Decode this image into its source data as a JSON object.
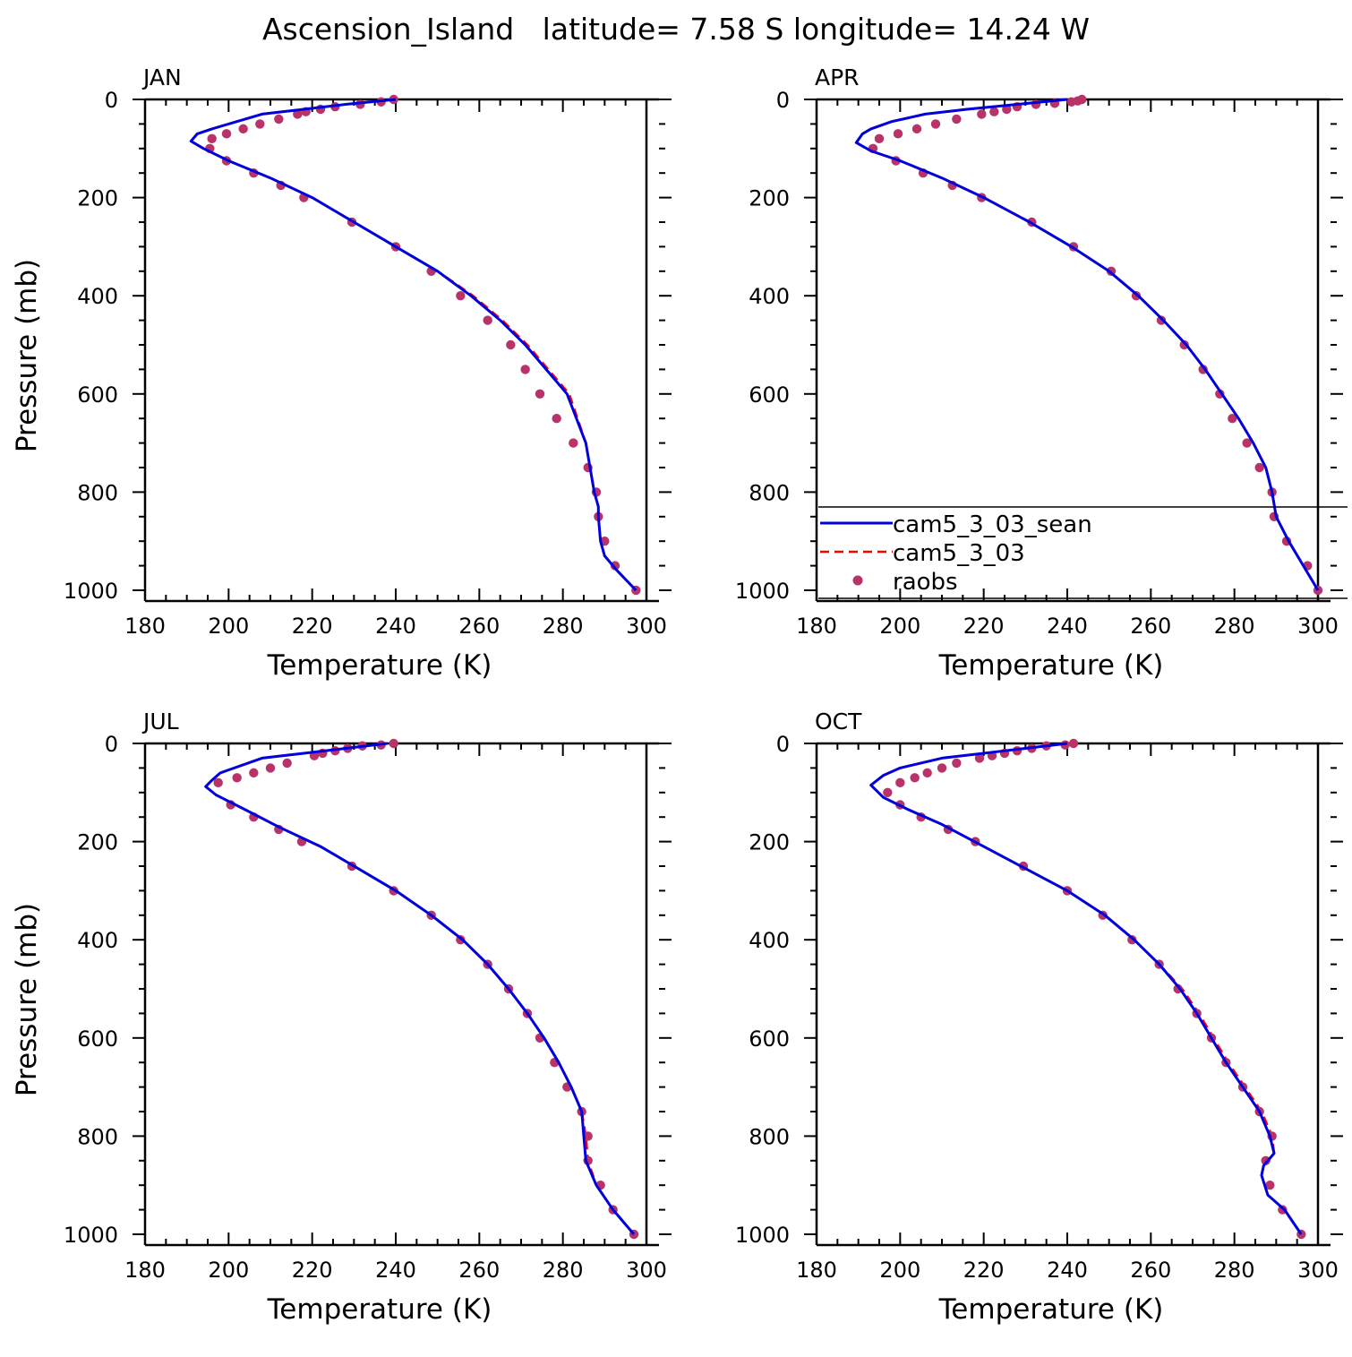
{
  "figure": {
    "title": "Ascension_Island   latitude= 7.58 S longitude= 14.24 W"
  },
  "legend": {
    "entries": [
      {
        "label": "cam5_3_03_sean",
        "style": "solid-line",
        "color": "#0000dd"
      },
      {
        "label": "cam5_3_03",
        "style": "dashed-line",
        "color": "#ff0000"
      },
      {
        "label": "raobs",
        "style": "marker",
        "color": "#b8336a"
      }
    ]
  },
  "colors": {
    "model_sean": "#0000dd",
    "model_base": "#ff0000",
    "raobs": "#b8336a"
  },
  "chart_data": [
    {
      "type": "line",
      "panel": "JAN",
      "xlabel": "Temperature (K)",
      "ylabel": "Pressure (mb)",
      "xlim": [
        180,
        300
      ],
      "ylim": [
        0,
        1000
      ],
      "y_inverted": true,
      "xticks": [
        180,
        200,
        220,
        240,
        260,
        280,
        300
      ],
      "yticks": [
        0,
        200,
        400,
        600,
        800,
        1000
      ],
      "series": [
        {
          "name": "cam5_3_03_sean",
          "x": [
            240,
            228,
            218,
            208,
            200,
            196,
            192.5,
            191,
            194,
            200,
            210,
            220,
            230,
            240,
            250,
            258,
            265,
            271,
            276,
            281,
            285.5,
            287.5,
            288.5,
            288.5,
            289,
            290,
            293,
            297.5
          ],
          "y": [
            0,
            10,
            20,
            30,
            50,
            60,
            70,
            85,
            100,
            125,
            160,
            200,
            250,
            300,
            350,
            400,
            450,
            500,
            550,
            600,
            700,
            800,
            830,
            850,
            900,
            930,
            960,
            1000
          ]
        },
        {
          "name": "cam5_3_03",
          "x": [
            240,
            228,
            218,
            208,
            200,
            196,
            192.5,
            191,
            194,
            200,
            210,
            220,
            230,
            240,
            250,
            258.5,
            265.5,
            271.5,
            276.5,
            281.5,
            285.5,
            287.5,
            288.5,
            288.5,
            289,
            290,
            293,
            297.5
          ],
          "y": [
            0,
            10,
            20,
            30,
            50,
            60,
            70,
            85,
            100,
            125,
            160,
            200,
            250,
            300,
            350,
            400,
            450,
            500,
            550,
            600,
            700,
            800,
            830,
            850,
            900,
            930,
            960,
            1000
          ]
        },
        {
          "name": "raobs",
          "x": [
            239.5,
            236.5,
            231.5,
            225.5,
            222,
            218.5,
            216.5,
            212,
            207.5,
            203.5,
            199.5,
            196,
            195.5,
            199.5,
            206,
            212.5,
            218,
            229.5,
            240,
            248.5,
            255.5,
            262,
            267.5,
            271,
            274.5,
            278.5,
            282.5,
            286,
            288,
            288.5,
            290,
            292.5,
            297.5
          ],
          "y": [
            0,
            5,
            10,
            15,
            20,
            25,
            30,
            40,
            50,
            60,
            70,
            80,
            100,
            125,
            150,
            175,
            200,
            250,
            300,
            350,
            400,
            450,
            500,
            550,
            600,
            650,
            700,
            750,
            800,
            850,
            900,
            950,
            1000
          ]
        }
      ]
    },
    {
      "type": "line",
      "panel": "APR",
      "xlabel": "Temperature (K)",
      "ylabel": "",
      "xlim": [
        180,
        300
      ],
      "ylim": [
        0,
        1000
      ],
      "y_inverted": true,
      "xticks": [
        180,
        200,
        220,
        240,
        260,
        280,
        300
      ],
      "yticks": [
        0,
        200,
        400,
        600,
        800,
        1000
      ],
      "series": [
        {
          "name": "cam5_3_03_sean",
          "x": [
            240,
            228,
            216,
            206,
            198,
            193,
            191,
            189.5,
            193,
            200,
            210,
            220,
            231,
            241,
            250,
            257,
            263,
            268.5,
            273,
            277,
            281,
            284.5,
            287.5,
            289,
            290,
            293,
            300
          ],
          "y": [
            0,
            10,
            20,
            30,
            45,
            60,
            70,
            88,
            105,
            125,
            160,
            200,
            250,
            300,
            350,
            400,
            450,
            500,
            550,
            600,
            650,
            700,
            750,
            800,
            850,
            900,
            1000
          ]
        },
        {
          "name": "cam5_3_03",
          "x": [
            240,
            228,
            216,
            206,
            198,
            193,
            191,
            189.5,
            193,
            200,
            210,
            220,
            231,
            241,
            250,
            257,
            263,
            268.5,
            273,
            277,
            281,
            284.5,
            287.5,
            289,
            290,
            293,
            300
          ],
          "y": [
            0,
            10,
            20,
            30,
            45,
            60,
            70,
            88,
            105,
            125,
            160,
            200,
            250,
            300,
            350,
            400,
            450,
            500,
            550,
            600,
            650,
            700,
            750,
            800,
            850,
            900,
            1000
          ]
        },
        {
          "name": "raobs",
          "x": [
            243.5,
            242.5,
            241,
            237,
            232.5,
            228,
            225.5,
            222.5,
            219.5,
            213.5,
            208.5,
            204,
            199.5,
            195,
            193.5,
            199,
            205.5,
            212.5,
            219.5,
            231.5,
            241.5,
            250.5,
            256.5,
            262.5,
            268,
            272.5,
            276.5,
            279.5,
            283,
            286,
            289,
            289.5,
            292.5,
            297.5,
            300
          ],
          "y": [
            0,
            3,
            5,
            8,
            10,
            15,
            20,
            25,
            30,
            40,
            50,
            60,
            70,
            80,
            100,
            125,
            150,
            175,
            200,
            250,
            300,
            350,
            400,
            450,
            500,
            550,
            600,
            650,
            700,
            750,
            800,
            850,
            900,
            950,
            1000
          ]
        }
      ]
    },
    {
      "type": "line",
      "panel": "JUL",
      "xlabel": "Temperature (K)",
      "ylabel": "Pressure (mb)",
      "xlim": [
        180,
        300
      ],
      "ylim": [
        0,
        1000
      ],
      "y_inverted": true,
      "xticks": [
        180,
        200,
        220,
        240,
        260,
        280,
        300
      ],
      "yticks": [
        0,
        200,
        400,
        600,
        800,
        1000
      ],
      "series": [
        {
          "name": "cam5_3_03_sean",
          "x": [
            238,
            228,
            218,
            208,
            198,
            196,
            194.5,
            197,
            204,
            212,
            222,
            231,
            240,
            248.5,
            256,
            262,
            267,
            271.5,
            275.5,
            279,
            282,
            284.5,
            285,
            285.5,
            288,
            292,
            297
          ],
          "y": [
            0,
            10,
            20,
            30,
            60,
            75,
            88,
            105,
            135,
            170,
            210,
            255,
            300,
            350,
            400,
            450,
            500,
            550,
            600,
            650,
            700,
            750,
            800,
            850,
            900,
            950,
            1000
          ]
        },
        {
          "name": "cam5_3_03",
          "x": [
            238,
            228,
            218,
            208,
            198,
            196,
            194.5,
            197,
            204,
            212,
            222,
            231,
            240,
            248.5,
            256,
            262,
            267,
            271.5,
            275.5,
            279,
            282,
            284.5,
            285.5,
            286,
            288,
            292,
            297
          ],
          "y": [
            0,
            10,
            20,
            30,
            60,
            75,
            88,
            105,
            135,
            170,
            210,
            255,
            300,
            350,
            400,
            450,
            500,
            550,
            600,
            650,
            700,
            750,
            800,
            850,
            900,
            950,
            1000
          ]
        },
        {
          "name": "raobs",
          "x": [
            239.5,
            236.5,
            232,
            228.5,
            225.5,
            222.5,
            220.5,
            214,
            210,
            206,
            202,
            197.5,
            200.5,
            206,
            212,
            217.5,
            229.5,
            239.5,
            248.5,
            255.5,
            262,
            267,
            271.5,
            274.5,
            278,
            281,
            284.5,
            286,
            286,
            289,
            292,
            297
          ],
          "y": [
            0,
            3,
            5,
            10,
            15,
            20,
            25,
            40,
            50,
            60,
            70,
            80,
            125,
            150,
            175,
            200,
            250,
            300,
            350,
            400,
            450,
            500,
            550,
            600,
            650,
            700,
            750,
            800,
            850,
            900,
            950,
            1000
          ]
        }
      ]
    },
    {
      "type": "line",
      "panel": "OCT",
      "xlabel": "Temperature (K)",
      "ylabel": "",
      "xlim": [
        180,
        300
      ],
      "ylim": [
        0,
        1000
      ],
      "y_inverted": true,
      "xticks": [
        180,
        200,
        220,
        240,
        260,
        280,
        300
      ],
      "yticks": [
        0,
        200,
        400,
        600,
        800,
        1000
      ],
      "series": [
        {
          "name": "cam5_3_03_sean",
          "x": [
            240,
            230,
            220,
            210,
            200,
            196,
            193,
            196,
            202,
            210,
            220,
            230,
            240,
            249,
            256,
            262,
            267,
            271,
            274.5,
            278,
            282,
            286,
            288.5,
            289.5,
            287,
            286.5,
            288,
            292,
            296
          ],
          "y": [
            0,
            10,
            20,
            30,
            50,
            65,
            85,
            110,
            135,
            165,
            210,
            255,
            300,
            350,
            400,
            450,
            500,
            550,
            600,
            650,
            700,
            750,
            800,
            835,
            860,
            880,
            920,
            950,
            1000
          ]
        },
        {
          "name": "cam5_3_03",
          "x": [
            240,
            230,
            220,
            210,
            200,
            196,
            193,
            196,
            202,
            210,
            220,
            230,
            240,
            249,
            256,
            262,
            267.5,
            271.5,
            275,
            278.5,
            282.5,
            286.5,
            289,
            289.5,
            287,
            286.5,
            288,
            292,
            296
          ],
          "y": [
            0,
            10,
            20,
            30,
            50,
            65,
            85,
            110,
            135,
            165,
            210,
            255,
            300,
            350,
            400,
            450,
            500,
            550,
            600,
            650,
            700,
            750,
            800,
            835,
            860,
            880,
            920,
            950,
            1000
          ]
        },
        {
          "name": "raobs",
          "x": [
            241.5,
            239.5,
            235,
            231.5,
            228,
            225,
            222,
            219,
            213.5,
            210,
            206.5,
            203.5,
            200,
            197,
            200,
            205,
            211.5,
            218,
            229.5,
            240,
            248.5,
            255.5,
            262,
            266.5,
            271,
            274.5,
            278,
            282,
            286,
            289,
            287.5,
            288.5,
            291.5,
            296
          ],
          "y": [
            0,
            3,
            5,
            10,
            15,
            20,
            25,
            30,
            40,
            50,
            60,
            70,
            80,
            100,
            125,
            150,
            175,
            200,
            250,
            300,
            350,
            400,
            450,
            500,
            550,
            600,
            650,
            700,
            750,
            800,
            850,
            900,
            950,
            1000
          ]
        }
      ]
    }
  ]
}
